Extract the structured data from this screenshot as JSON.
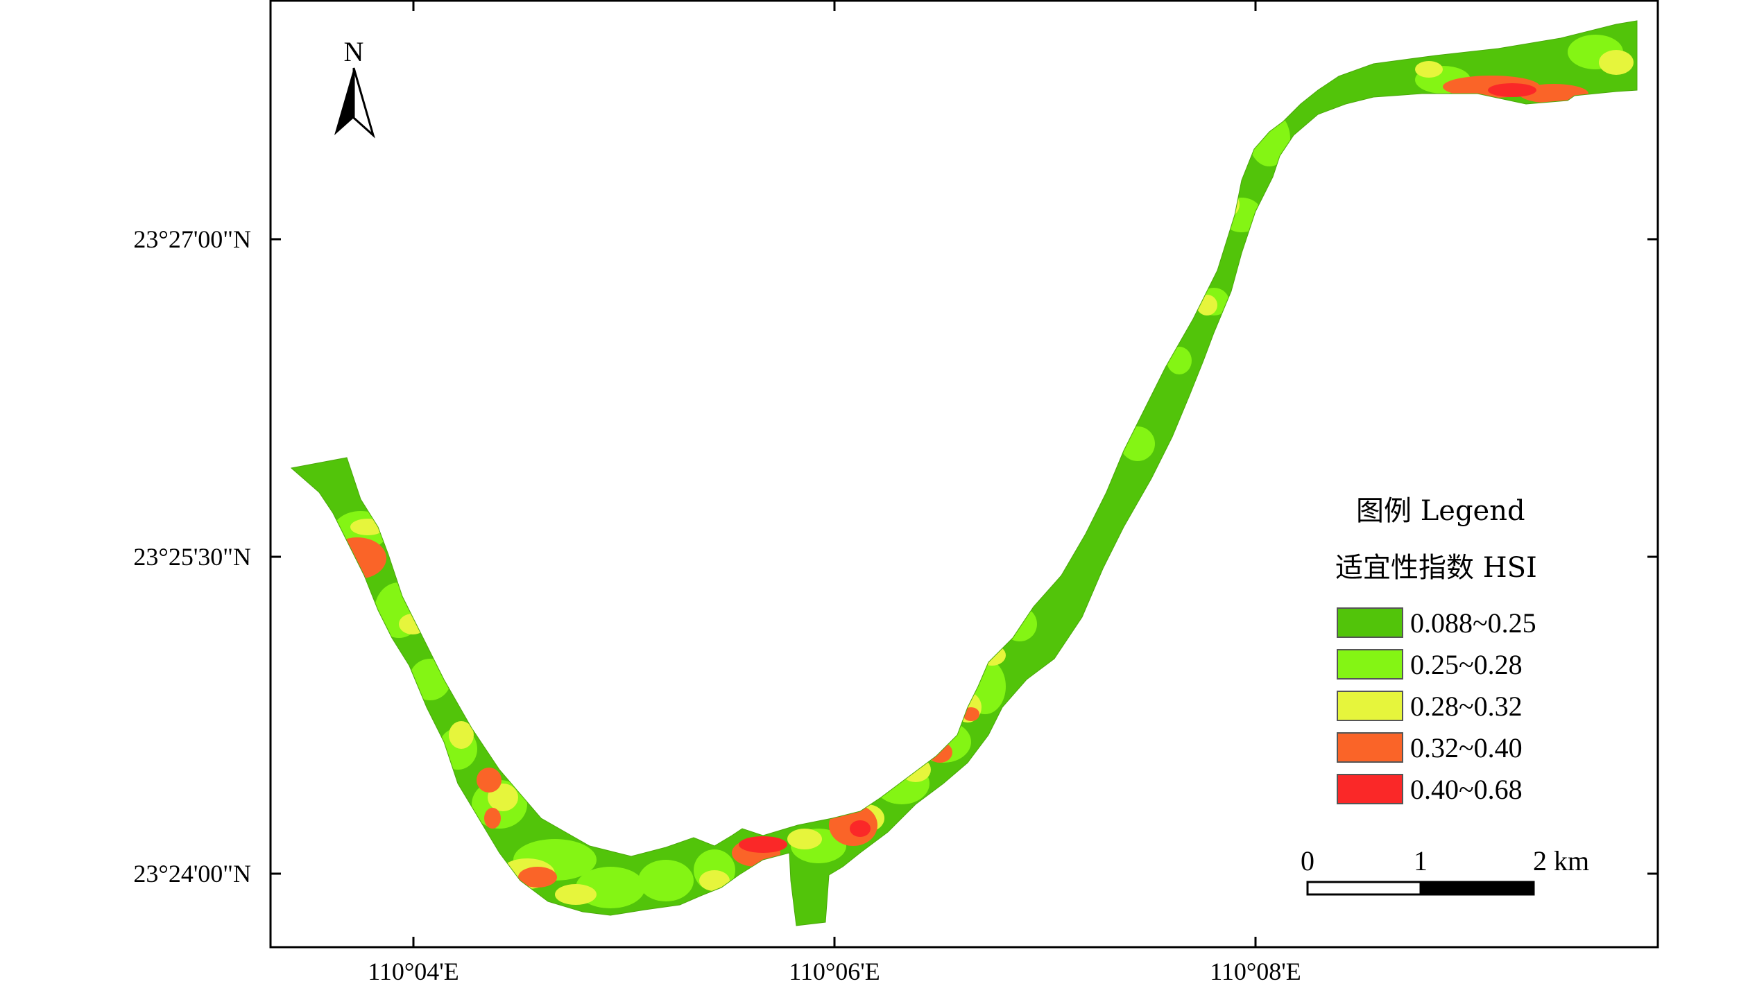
{
  "map": {
    "north_label": "N",
    "lat_labels": [
      "23°27'00\"N",
      "23°25'30\"N",
      "23°24'00\"N"
    ],
    "lon_labels": [
      "110°04'E",
      "110°06'E",
      "110°08'E"
    ],
    "legend": {
      "title": "图例 Legend",
      "subtitle": "适宜性指数 HSI",
      "classes": [
        {
          "label": "0.088~0.25",
          "color": "#52c40a"
        },
        {
          "label": "0.25~0.28",
          "color": "#84f514"
        },
        {
          "label": "0.28~0.32",
          "color": "#e6f53c"
        },
        {
          "label": "0.32~0.40",
          "color": "#fa6428"
        },
        {
          "label": "0.40~0.68",
          "color": "#fa2828"
        }
      ]
    },
    "scale_bar": {
      "labels": [
        "0",
        "1",
        "2 km"
      ]
    }
  }
}
